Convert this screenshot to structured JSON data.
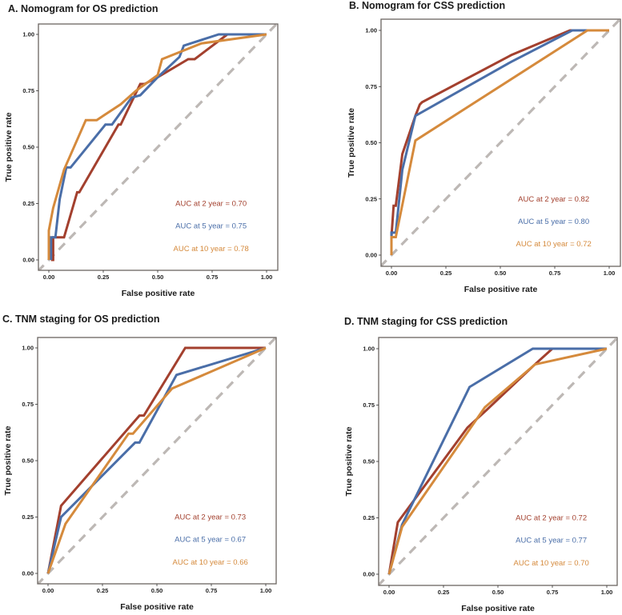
{
  "chart_data": [
    {
      "type": "line",
      "title": "A. Nomogram for OS prediction",
      "xlabel": "False positive rate",
      "ylabel": "True positive rate",
      "xlim": [
        0,
        1
      ],
      "ylim": [
        0,
        1
      ],
      "xticks": [
        "0.00",
        "0.25",
        "0.50",
        "0.75",
        "1.00"
      ],
      "yticks": [
        "0.00",
        "0.25",
        "0.50",
        "0.75",
        "1.00"
      ],
      "reference_line": "diagonal dashed",
      "series": [
        {
          "name": "2 year",
          "color": "#A3402E",
          "label": "AUC at 2 year = 0.70",
          "auc": 0.7,
          "x": [
            0.01,
            0.02,
            0.02,
            0.07,
            0.13,
            0.14,
            0.32,
            0.33,
            0.42,
            0.44,
            0.5,
            0.64,
            0.67,
            0.82,
            1
          ],
          "y": [
            0,
            0,
            0.1,
            0.1,
            0.3,
            0.3,
            0.6,
            0.6,
            0.78,
            0.78,
            0.81,
            0.89,
            0.89,
            1,
            1
          ]
        },
        {
          "name": "5 year",
          "color": "#4A6EA8",
          "label": "AUC at 5 year = 0.75",
          "auc": 0.75,
          "x": [
            0.01,
            0.01,
            0.03,
            0.05,
            0.08,
            0.1,
            0.26,
            0.29,
            0.38,
            0.42,
            0.5,
            0.6,
            0.62,
            0.78,
            1
          ],
          "y": [
            0,
            0.1,
            0.1,
            0.27,
            0.41,
            0.41,
            0.6,
            0.6,
            0.72,
            0.73,
            0.81,
            0.9,
            0.95,
            1,
            1
          ]
        },
        {
          "name": "10 year",
          "color": "#D58A3C",
          "label": "AUC at 10 year = 0.78",
          "auc": 0.78,
          "x": [
            0,
            0,
            0.02,
            0.07,
            0.17,
            0.22,
            0.33,
            0.4,
            0.5,
            0.52,
            0.7,
            1
          ],
          "y": [
            0,
            0.13,
            0.23,
            0.4,
            0.62,
            0.62,
            0.69,
            0.75,
            0.82,
            0.89,
            0.96,
            1
          ]
        }
      ]
    },
    {
      "type": "line",
      "title": "B. Nomogram for CSS prediction",
      "xlabel": "False positive rate",
      "ylabel": "True positive rate",
      "xlim": [
        0,
        1
      ],
      "ylim": [
        0,
        1
      ],
      "xticks": [
        "0.00",
        "0.25",
        "0.50",
        "0.75",
        "1.00"
      ],
      "yticks": [
        "0.00",
        "0.25",
        "0.50",
        "0.75",
        "1.00"
      ],
      "reference_line": "diagonal dashed",
      "series": [
        {
          "name": "2 year",
          "color": "#A3402E",
          "label": "AUC at 2 year = 0.82",
          "auc": 0.82,
          "x": [
            0,
            0.01,
            0.02,
            0.05,
            0.11,
            0.13,
            0.14,
            0.55,
            0.82,
            1
          ],
          "y": [
            0.08,
            0.22,
            0.22,
            0.45,
            0.62,
            0.67,
            0.68,
            0.89,
            1,
            1
          ]
        },
        {
          "name": "5 year",
          "color": "#4A6EA8",
          "label": "AUC at 5 year = 0.80",
          "auc": 0.8,
          "x": [
            0,
            0,
            0.02,
            0.05,
            0.11,
            0.55,
            0.83,
            1
          ],
          "y": [
            0.08,
            0.1,
            0.1,
            0.38,
            0.62,
            0.86,
            1,
            1
          ]
        },
        {
          "name": "10 year",
          "color": "#D58A3C",
          "label": "AUC at 10 year = 0.72",
          "auc": 0.72,
          "x": [
            0,
            0,
            0.02,
            0.11,
            0.9,
            1
          ],
          "y": [
            0,
            0.08,
            0.08,
            0.51,
            1,
            1
          ]
        }
      ]
    },
    {
      "type": "line",
      "title": "C. TNM staging for OS prediction",
      "xlabel": "False positive rate",
      "ylabel": "True positive rate",
      "xlim": [
        0,
        1
      ],
      "ylim": [
        0,
        1
      ],
      "xticks": [
        "0.00",
        "0.25",
        "0.50",
        "0.75",
        "1.00"
      ],
      "yticks": [
        "0.00",
        "0.25",
        "0.50",
        "0.75",
        "1.00"
      ],
      "reference_line": "diagonal dashed",
      "series": [
        {
          "name": "2 year",
          "color": "#A3402E",
          "label": "AUC at 2 year = 0.73",
          "auc": 0.73,
          "x": [
            0,
            0.06,
            0.42,
            0.44,
            0.63,
            1
          ],
          "y": [
            0,
            0.3,
            0.7,
            0.7,
            1,
            1
          ]
        },
        {
          "name": "5 year",
          "color": "#4A6EA8",
          "label": "AUC at 5 year = 0.67",
          "auc": 0.67,
          "x": [
            0,
            0.06,
            0.4,
            0.42,
            0.59,
            1
          ],
          "y": [
            0,
            0.25,
            0.58,
            0.58,
            0.88,
            1
          ]
        },
        {
          "name": "10 year",
          "color": "#D58A3C",
          "label": "AUC at 10 year = 0.66",
          "auc": 0.66,
          "x": [
            0,
            0.08,
            0.37,
            0.39,
            0.57,
            1
          ],
          "y": [
            0,
            0.22,
            0.62,
            0.62,
            0.82,
            1
          ]
        }
      ]
    },
    {
      "type": "line",
      "title": "D. TNM staging for CSS prediction",
      "xlabel": "False positive rate",
      "ylabel": "True positive rate",
      "xlim": [
        0,
        1
      ],
      "ylim": [
        0,
        1
      ],
      "xticks": [
        "0.00",
        "0.25",
        "0.50",
        "0.75",
        "1.00"
      ],
      "yticks": [
        "0.00",
        "0.25",
        "0.50",
        "0.75",
        "1.00"
      ],
      "reference_line": "diagonal dashed",
      "series": [
        {
          "name": "2 year",
          "color": "#A3402E",
          "label": "AUC at 2 year = 0.72",
          "auc": 0.72,
          "x": [
            0,
            0.04,
            0.36,
            0.45,
            0.67,
            0.75,
            1
          ],
          "y": [
            0,
            0.23,
            0.65,
            0.73,
            0.93,
            1,
            1
          ]
        },
        {
          "name": "5 year",
          "color": "#4A6EA8",
          "label": "AUC at 5 year = 0.77",
          "auc": 0.77,
          "x": [
            0,
            0.06,
            0.37,
            0.66,
            1
          ],
          "y": [
            0,
            0.22,
            0.83,
            1,
            1
          ]
        },
        {
          "name": "10 year",
          "color": "#D58A3C",
          "label": "AUC at 10 year = 0.70",
          "auc": 0.7,
          "x": [
            0,
            0.06,
            0.44,
            0.67,
            1
          ],
          "y": [
            0,
            0.21,
            0.74,
            0.93,
            1
          ]
        }
      ]
    }
  ]
}
